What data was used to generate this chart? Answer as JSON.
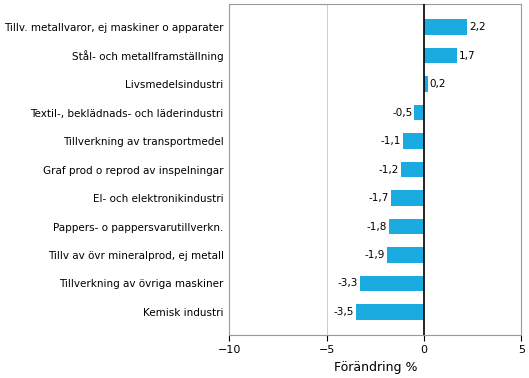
{
  "categories": [
    "Kemisk industri",
    "Tillverkning av övriga maskiner",
    "Tillv av övr mineralprod, ej metall",
    "Pappers- o pappersvarutillverkn.",
    "El- och elektronikindustri",
    "Graf prod o reprod av inspelningar",
    "Tillverkning av transportmedel",
    "Textil-, beklädnads- och läderindustri",
    "Livsmedelsindustri",
    "Stål- och metallframställning",
    "Tillv. metallvaror, ej maskiner o apparater"
  ],
  "values": [
    -3.5,
    -3.3,
    -1.9,
    -1.8,
    -1.7,
    -1.2,
    -1.1,
    -0.5,
    0.2,
    1.7,
    2.2
  ],
  "bar_color": "#1aace0",
  "xlabel": "Förändring %",
  "xlim": [
    -10,
    5
  ],
  "xticks": [
    -10,
    -5,
    0,
    5
  ],
  "value_labels": [
    "-3,5",
    "-3,3",
    "-1,9",
    "-1,8",
    "-1,7",
    "-1,2",
    "-1,1",
    "-0,5",
    "0,2",
    "1,7",
    "2,2"
  ],
  "label_fontsize": 7.5,
  "tick_fontsize": 8,
  "xlabel_fontsize": 9,
  "bar_height": 0.55,
  "figsize": [
    5.29,
    3.78
  ],
  "dpi": 100
}
